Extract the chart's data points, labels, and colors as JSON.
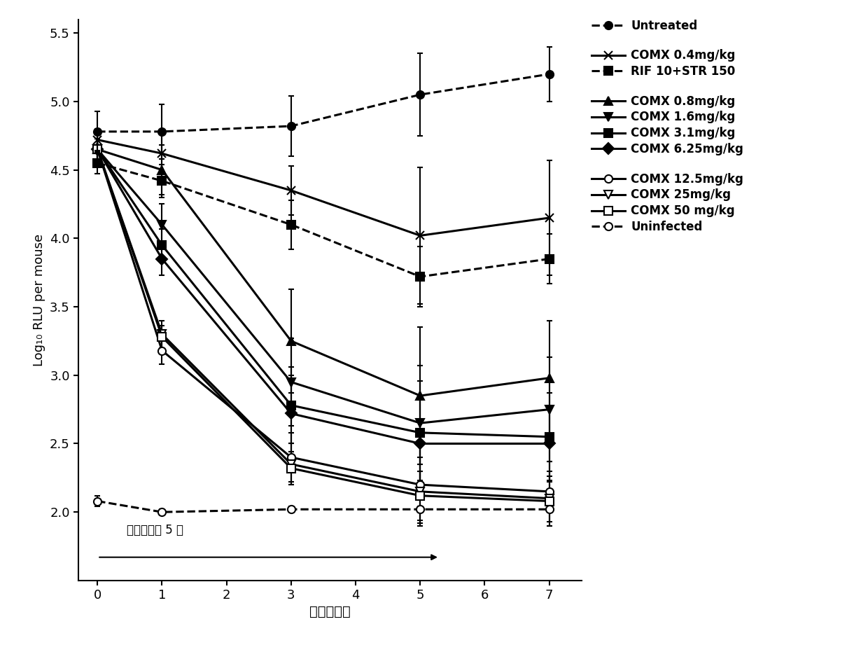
{
  "x": [
    0,
    1,
    3,
    5,
    7
  ],
  "series_order": [
    "Untreated",
    "COMX 0.4mg/kg",
    "RIF 10+STR 150",
    "COMX 0.8mg/kg",
    "COMX 1.6mg/kg",
    "COMX 3.1mg/kg",
    "COMX 6.25mg/kg",
    "COMX 12.5mg/kg",
    "COMX 25mg/kg",
    "COMX 50 mg/kg",
    "Uninfected"
  ],
  "series": {
    "Untreated": {
      "y": [
        4.78,
        4.78,
        4.82,
        5.05,
        5.2
      ],
      "yerr": [
        0.15,
        0.2,
        0.22,
        0.3,
        0.2
      ],
      "marker": "o",
      "linestyle": "--",
      "linewidth": 2.2,
      "markersize": 8,
      "markerfacecolor": "black",
      "zorder": 5
    },
    "COMX 0.4mg/kg": {
      "y": [
        4.72,
        4.62,
        4.35,
        4.02,
        4.15
      ],
      "yerr": [
        0.08,
        0.15,
        0.18,
        0.5,
        0.42
      ],
      "marker": "x",
      "linestyle": "-",
      "linewidth": 2.2,
      "markersize": 9,
      "markerfacecolor": "black",
      "zorder": 4
    },
    "RIF 10+STR 150": {
      "y": [
        4.55,
        4.42,
        4.1,
        3.72,
        3.85
      ],
      "yerr": [
        0.08,
        0.12,
        0.18,
        0.22,
        0.18
      ],
      "marker": "s",
      "linestyle": "--",
      "linewidth": 2.2,
      "markersize": 8,
      "markerfacecolor": "black",
      "zorder": 4
    },
    "COMX 0.8mg/kg": {
      "y": [
        4.65,
        4.5,
        3.25,
        2.85,
        2.98
      ],
      "yerr": [
        0.08,
        0.18,
        0.38,
        0.5,
        0.42
      ],
      "marker": "^",
      "linestyle": "-",
      "linewidth": 2.2,
      "markersize": 8,
      "markerfacecolor": "black",
      "zorder": 3
    },
    "COMX 1.6mg/kg": {
      "y": [
        4.65,
        4.1,
        2.95,
        2.65,
        2.75
      ],
      "yerr": [
        0.08,
        0.15,
        0.32,
        0.42,
        0.38
      ],
      "marker": "v",
      "linestyle": "-",
      "linewidth": 2.2,
      "markersize": 8,
      "markerfacecolor": "black",
      "zorder": 3
    },
    "COMX 3.1mg/kg": {
      "y": [
        4.65,
        3.95,
        2.78,
        2.58,
        2.55
      ],
      "yerr": [
        0.08,
        0.12,
        0.28,
        0.38,
        0.32
      ],
      "marker": "s",
      "linestyle": "-",
      "linewidth": 2.2,
      "markersize": 8,
      "markerfacecolor": "black",
      "zorder": 3
    },
    "COMX 6.25mg/kg": {
      "y": [
        4.65,
        3.85,
        2.72,
        2.5,
        2.5
      ],
      "yerr": [
        0.08,
        0.12,
        0.28,
        0.32,
        0.28
      ],
      "marker": "D",
      "linestyle": "-",
      "linewidth": 2.2,
      "markersize": 8,
      "markerfacecolor": "black",
      "zorder": 3
    },
    "COMX 12.5mg/kg": {
      "y": [
        4.65,
        3.18,
        2.4,
        2.2,
        2.15
      ],
      "yerr": [
        0.08,
        0.1,
        0.18,
        0.28,
        0.22
      ],
      "marker": "o",
      "linestyle": "-",
      "linewidth": 2.2,
      "markersize": 8,
      "markerfacecolor": "white",
      "zorder": 3
    },
    "COMX 25mg/kg": {
      "y": [
        4.65,
        3.3,
        2.35,
        2.15,
        2.1
      ],
      "yerr": [
        0.08,
        0.1,
        0.15,
        0.25,
        0.2
      ],
      "marker": "v",
      "linestyle": "-",
      "linewidth": 2.2,
      "markersize": 8,
      "markerfacecolor": "white",
      "zorder": 3
    },
    "COMX 50 mg/kg": {
      "y": [
        4.65,
        3.28,
        2.32,
        2.12,
        2.08
      ],
      "yerr": [
        0.08,
        0.08,
        0.12,
        0.18,
        0.18
      ],
      "marker": "s",
      "linestyle": "-",
      "linewidth": 2.2,
      "markersize": 8,
      "markerfacecolor": "white",
      "zorder": 3
    },
    "Uninfected": {
      "y": [
        2.08,
        2.0,
        2.02,
        2.02,
        2.02
      ],
      "yerr": [
        0.04,
        0.02,
        0.02,
        0.02,
        0.02
      ],
      "marker": "o",
      "linestyle": "--",
      "linewidth": 2.2,
      "markersize": 8,
      "markerfacecolor": "white",
      "zorder": 5
    }
  },
  "xlabel": "时间（天）",
  "ylabel": "Log₁₀ RLU per mouse",
  "xlim": [
    -0.3,
    7.5
  ],
  "ylim": [
    1.5,
    5.6
  ],
  "xticks": [
    0,
    1,
    2,
    3,
    4,
    5,
    6,
    7
  ],
  "yticks": [
    2.0,
    2.5,
    3.0,
    3.5,
    4.0,
    4.5,
    5.0,
    5.5
  ],
  "annotation_text": "各组仅治疗 5 天",
  "figsize": [
    12.4,
    9.21
  ],
  "dpi": 100,
  "legend_groups": [
    [
      "Untreated"
    ],
    [
      "COMX 0.4mg/kg",
      "RIF 10+STR 150"
    ],
    [
      "COMX 0.8mg/kg",
      "COMX 1.6mg/kg",
      "COMX 3.1mg/kg",
      "COMX 6.25mg/kg"
    ],
    [
      "COMX 12.5mg/kg",
      "COMX 25mg/kg",
      "COMX 50 mg/kg",
      "Uninfected"
    ]
  ]
}
